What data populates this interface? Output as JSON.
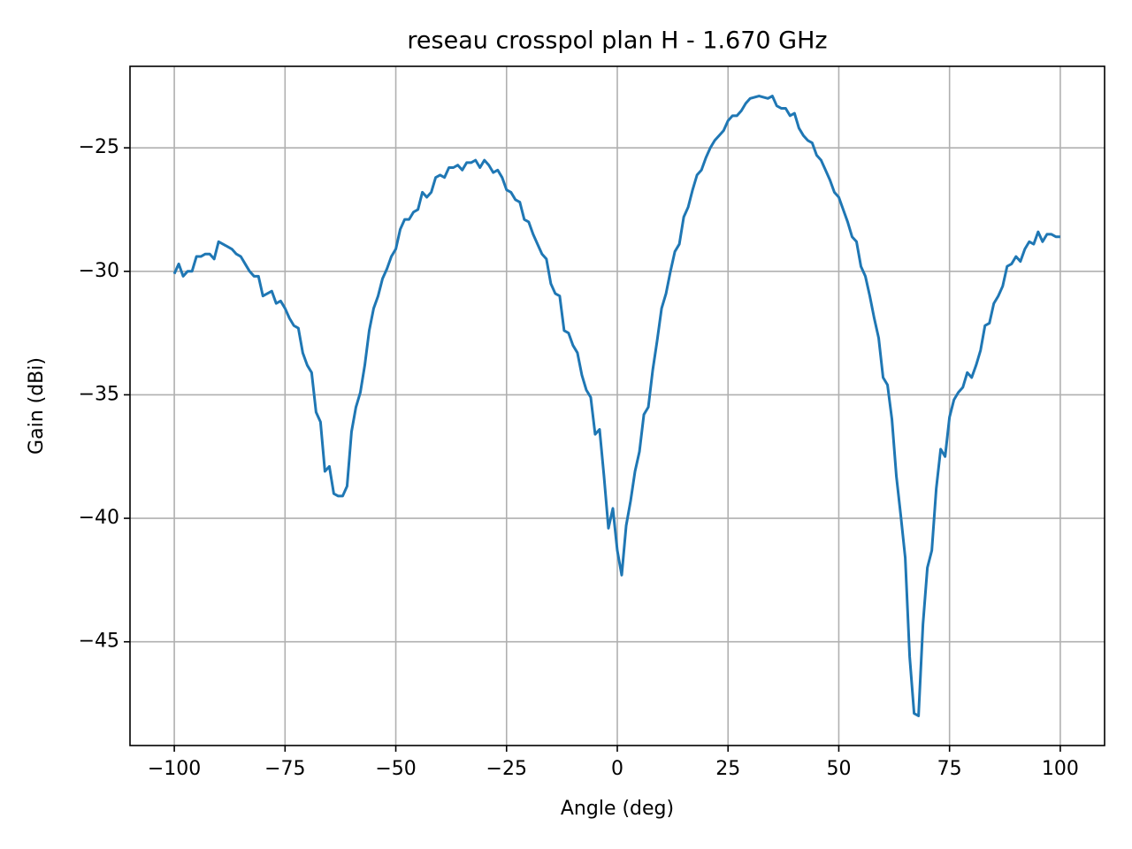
{
  "chart_data": {
    "type": "line",
    "title": "reseau crosspol plan H - 1.670 GHz",
    "x_label": "Angle (deg)",
    "y_label": "Gain (dBi)",
    "x": [
      -100,
      -99,
      -98,
      -97,
      -96,
      -95,
      -94,
      -93,
      -92,
      -91,
      -90,
      -89,
      -88,
      -87,
      -86,
      -85,
      -84,
      -83,
      -82,
      -81,
      -80,
      -79,
      -78,
      -77,
      -76,
      -75,
      -74,
      -73,
      -72,
      -71,
      -70,
      -69,
      -68,
      -67,
      -66,
      -65,
      -64,
      -63,
      -62,
      -61,
      -60,
      -59,
      -58,
      -57,
      -56,
      -55,
      -54,
      -53,
      -52,
      -51,
      -50,
      -49,
      -48,
      -47,
      -46,
      -45,
      -44,
      -43,
      -42,
      -41,
      -40,
      -39,
      -38,
      -37,
      -36,
      -35,
      -34,
      -33,
      -32,
      -31,
      -30,
      -29,
      -28,
      -27,
      -26,
      -25,
      -24,
      -23,
      -22,
      -21,
      -20,
      -19,
      -18,
      -17,
      -16,
      -15,
      -14,
      -13,
      -12,
      -11,
      -10,
      -9,
      -8,
      -7,
      -6,
      -5,
      -4,
      -3,
      -2,
      -1,
      0,
      1,
      2,
      3,
      4,
      5,
      6,
      7,
      8,
      9,
      10,
      11,
      12,
      13,
      14,
      15,
      16,
      17,
      18,
      19,
      20,
      21,
      22,
      23,
      24,
      25,
      26,
      27,
      28,
      29,
      30,
      31,
      32,
      33,
      34,
      35,
      36,
      37,
      38,
      39,
      40,
      41,
      42,
      43,
      44,
      45,
      46,
      47,
      48,
      49,
      50,
      51,
      52,
      53,
      54,
      55,
      56,
      57,
      58,
      59,
      60,
      61,
      62,
      63,
      64,
      65,
      66,
      67,
      68,
      69,
      70,
      71,
      72,
      73,
      74,
      75,
      76,
      77,
      78,
      79,
      80,
      81,
      82,
      83,
      84,
      85,
      86,
      87,
      88,
      89,
      90,
      91,
      92,
      93,
      94,
      95,
      96,
      97,
      98,
      99,
      100
    ],
    "series": [
      {
        "color": "#1f77b4",
        "values": [
          -30.1,
          -29.7,
          -30.2,
          -30.0,
          -30.0,
          -29.4,
          -29.4,
          -29.3,
          -29.3,
          -29.5,
          -28.8,
          -28.9,
          -29.0,
          -29.1,
          -29.3,
          -29.4,
          -29.7,
          -30.0,
          -30.2,
          -30.2,
          -31.0,
          -30.9,
          -30.8,
          -31.3,
          -31.2,
          -31.5,
          -31.9,
          -32.2,
          -32.3,
          -33.3,
          -33.8,
          -34.1,
          -35.7,
          -36.1,
          -38.1,
          -37.9,
          -39.0,
          -39.1,
          -39.1,
          -38.7,
          -36.5,
          -35.5,
          -34.9,
          -33.8,
          -32.4,
          -31.5,
          -31.0,
          -30.3,
          -29.9,
          -29.4,
          -29.1,
          -28.3,
          -27.9,
          -27.9,
          -27.6,
          -27.5,
          -26.8,
          -27.0,
          -26.8,
          -26.2,
          -26.1,
          -26.2,
          -25.8,
          -25.8,
          -25.7,
          -25.9,
          -25.6,
          -25.6,
          -25.5,
          -25.8,
          -25.5,
          -25.7,
          -26.0,
          -25.9,
          -26.2,
          -26.7,
          -26.8,
          -27.1,
          -27.2,
          -27.9,
          -28.0,
          -28.5,
          -28.9,
          -29.3,
          -29.5,
          -30.5,
          -30.9,
          -31.0,
          -32.4,
          -32.5,
          -33.0,
          -33.3,
          -34.2,
          -34.8,
          -35.1,
          -36.6,
          -36.4,
          -38.3,
          -40.4,
          -39.6,
          -41.3,
          -42.3,
          -40.3,
          -39.3,
          -38.1,
          -37.3,
          -35.8,
          -35.5,
          -34.0,
          -32.8,
          -31.5,
          -30.9,
          -30.0,
          -29.2,
          -28.9,
          -27.8,
          -27.4,
          -26.7,
          -26.1,
          -25.9,
          -25.4,
          -25.0,
          -24.7,
          -24.5,
          -24.3,
          -23.9,
          -23.7,
          -23.7,
          -23.5,
          -23.2,
          -23.0,
          -22.95,
          -22.9,
          -22.95,
          -23.0,
          -22.9,
          -23.3,
          -23.4,
          -23.4,
          -23.7,
          -23.6,
          -24.2,
          -24.5,
          -24.7,
          -24.8,
          -25.3,
          -25.5,
          -25.9,
          -26.3,
          -26.8,
          -27.0,
          -27.5,
          -28.0,
          -28.6,
          -28.8,
          -29.8,
          -30.2,
          -31.0,
          -31.9,
          -32.7,
          -34.3,
          -34.6,
          -36.0,
          -38.3,
          -39.9,
          -41.6,
          -45.6,
          -47.9,
          -48.0,
          -44.3,
          -42.0,
          -41.3,
          -38.8,
          -37.2,
          -37.5,
          -35.9,
          -35.2,
          -34.9,
          -34.7,
          -34.1,
          -34.3,
          -33.8,
          -33.2,
          -32.2,
          -32.1,
          -31.3,
          -31.0,
          -30.6,
          -29.8,
          -29.7,
          -29.4,
          -29.6,
          -29.1,
          -28.8,
          -28.9,
          -28.4,
          -28.8,
          -28.5,
          -28.5,
          -28.6,
          -28.6
        ]
      }
    ],
    "xlim": [
      -110,
      110
    ],
    "ylim": [
      -49.2,
      -21.7
    ],
    "xticks": [
      {
        "value": -100,
        "label": "−100"
      },
      {
        "value": -75,
        "label": "−75"
      },
      {
        "value": -50,
        "label": "−50"
      },
      {
        "value": -25,
        "label": "−25"
      },
      0,
      25,
      50,
      75,
      100
    ],
    "yticks": [
      {
        "value": -45,
        "label": "−45"
      },
      {
        "value": -40,
        "label": "−40"
      },
      {
        "value": -35,
        "label": "−35"
      },
      {
        "value": -30,
        "label": "−30"
      },
      {
        "value": -25,
        "label": "−25"
      }
    ],
    "grid": true
  }
}
